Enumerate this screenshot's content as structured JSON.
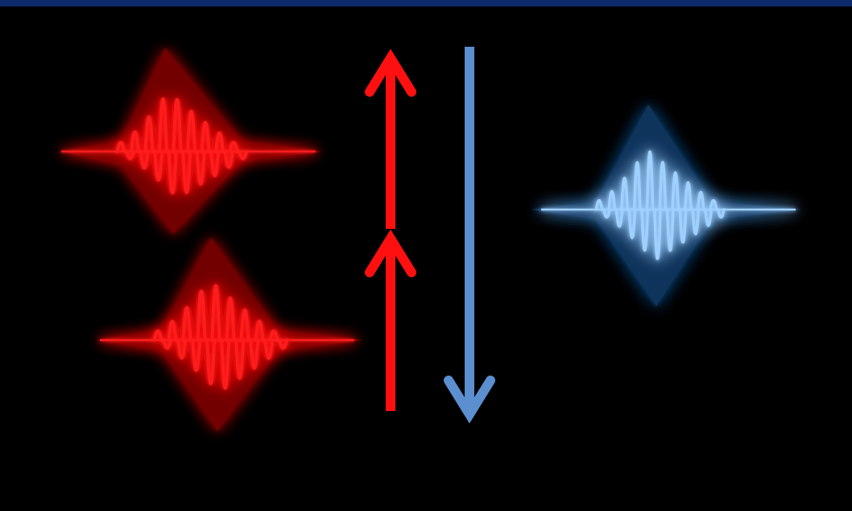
{
  "colors": {
    "background": "#000000",
    "top_bar": "#0d2a6b",
    "pump_wave": "#ff1a1a",
    "pump_glow": "#d00000",
    "pump_arrow": "#ff1010",
    "emit_wave": "#9fd0ff",
    "emit_glow": "#1f5fa8",
    "emit_arrow": "#5b8fcf"
  },
  "diagram": {
    "description_items": [
      {
        "name": "red-wave-packet-upper",
        "color_key": "pump"
      },
      {
        "name": "red-wave-packet-lower",
        "color_key": "pump"
      },
      {
        "name": "blue-wave-packet",
        "color_key": "emit"
      }
    ],
    "arrows": [
      {
        "name": "red-up-arrow-upper",
        "direction": "up"
      },
      {
        "name": "red-up-arrow-lower",
        "direction": "up"
      },
      {
        "name": "blue-down-arrow",
        "direction": "down"
      }
    ]
  }
}
